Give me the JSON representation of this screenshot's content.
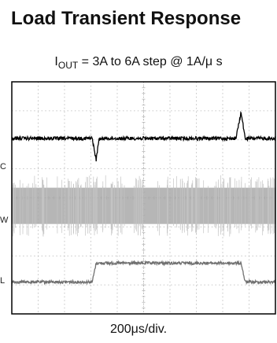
{
  "title": "Load Transient Response",
  "condition": {
    "symbol": "I",
    "subscript": "OUT",
    "rest": " = 3A to 6A step @ 1A/μ s"
  },
  "footer": "200μs/div.",
  "channel_label_cut": [
    "C",
    "W",
    "L"
  ],
  "colors": {
    "vout_trace": "#000000",
    "sw_trace": "#a9a9a9",
    "iout_trace": "#707070",
    "grid": "#b4b4b4",
    "frame": "#000000"
  },
  "chart_data": {
    "type": "line",
    "title": "Load Transient Response",
    "subtitle": "IOUT = 3A to 6A step @ 1A/μ s",
    "xlabel": "200μs/div.",
    "ylabel": "",
    "x_divisions": 10,
    "y_divisions": 8,
    "grid": true,
    "x": [
      0,
      0.4,
      0.8,
      1.2,
      1.6,
      2.0,
      2.4,
      2.8,
      3.05,
      3.2,
      3.3,
      3.45,
      3.6,
      4.0,
      5.0,
      6.0,
      7.0,
      8.0,
      8.5,
      8.7,
      8.85,
      9.0,
      9.2,
      9.6,
      10.0
    ],
    "series": [
      {
        "values": [
          6.05,
          6.05,
          6.05,
          6.05,
          6.05,
          6.05,
          6.05,
          6.05,
          6.05,
          5.3,
          6.0,
          6.05,
          6.05,
          6.05,
          6.05,
          6.05,
          6.05,
          6.05,
          6.05,
          6.95,
          6.05,
          6.05,
          6.05,
          6.05,
          6.05
        ]
      },
      {
        "band": [
          3.1,
          4.35
        ]
      },
      {
        "values": [
          1.1,
          1.1,
          1.1,
          1.1,
          1.1,
          1.1,
          1.1,
          1.1,
          1.1,
          1.75,
          1.75,
          1.75,
          1.75,
          1.75,
          1.75,
          1.75,
          1.75,
          1.75,
          1.75,
          1.75,
          1.1,
          1.1,
          1.1,
          1.1,
          1.1
        ]
      }
    ]
  }
}
